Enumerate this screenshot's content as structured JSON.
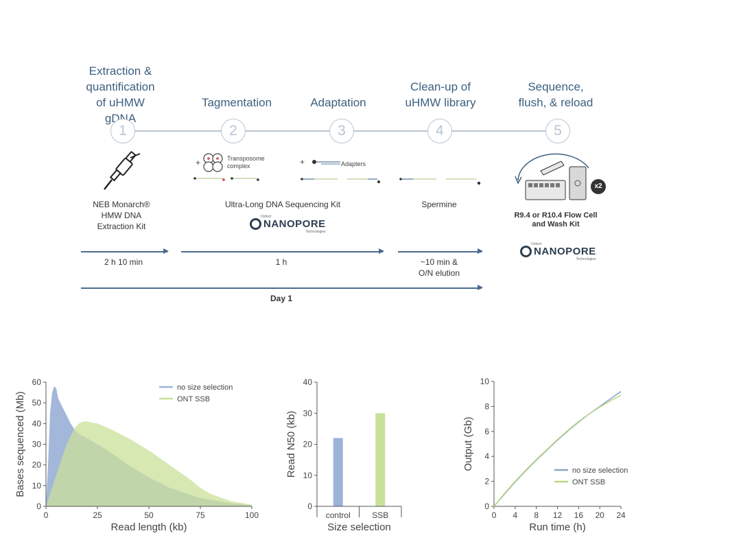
{
  "workflow": {
    "steps": [
      {
        "number": "1",
        "title": "Extraction &\nquantification\nof uHMW gDNA"
      },
      {
        "number": "2",
        "title": "Tagmentation"
      },
      {
        "number": "3",
        "title": "Adaptation"
      },
      {
        "number": "4",
        "title": "Clean-up of\nuHMW library"
      },
      {
        "number": "5",
        "title": "Sequence,\nflush, & reload"
      }
    ],
    "transposome_label": "Transposome\ncomplex",
    "adapters_label": "Adapters",
    "plus_sign": "+",
    "reload_badge": "x2",
    "kit_labels": {
      "neb": "NEB Monarch®\nHMW DNA\nExtraction Kit",
      "ul_kit": "Ultra-Long DNA Sequencing Kit",
      "spermine": "Spermine",
      "flowcell": "R9.4 or R10.4 Flow Cell\nand Wash Kit"
    },
    "logo": {
      "main": "NANOPORE",
      "top": "Oxford",
      "bottom": "Technologies"
    },
    "durations": {
      "step1": "2 h 10 min",
      "step23": "1 h",
      "step4": "~10 min &\nO/N elution",
      "day": "Day 1"
    },
    "colors": {
      "title_blue": "#3c5f80",
      "arrow": "#4a6a8c",
      "circle": "#b7c5d1"
    }
  },
  "chart_data": [
    {
      "type": "area",
      "ylabel": "Bases sequenced (Mb)",
      "xlabel": "Read length (kb)",
      "xlim": [
        0,
        100
      ],
      "ylim": [
        0,
        60
      ],
      "xticks": [
        "0",
        "25",
        "50",
        "75",
        "100"
      ],
      "yticks": [
        "0",
        "10",
        "20",
        "30",
        "40",
        "50",
        "60"
      ],
      "legend_position": "top-right",
      "series": [
        {
          "name": "no size selection",
          "color": "#9db3d8",
          "x": [
            0,
            1,
            2,
            3,
            4,
            5,
            6,
            8,
            10,
            12,
            14,
            16,
            18,
            20,
            25,
            30,
            40,
            50,
            60,
            75,
            90,
            100
          ],
          "y": [
            0,
            20,
            45,
            55,
            58,
            57,
            52,
            48,
            44,
            40,
            37,
            35,
            34,
            33,
            30,
            27,
            20,
            14,
            9,
            4,
            1.5,
            0.5
          ]
        },
        {
          "name": "ONT SSB",
          "color": "#c9e09a",
          "x": [
            0,
            2,
            4,
            6,
            8,
            10,
            12,
            14,
            16,
            18,
            20,
            25,
            30,
            40,
            50,
            60,
            70,
            75,
            80,
            90,
            100
          ],
          "y": [
            0,
            6,
            12,
            18,
            24,
            30,
            34,
            38,
            40,
            41,
            41,
            40,
            38,
            33,
            27,
            20,
            13,
            9,
            6,
            2.5,
            0.8
          ]
        }
      ]
    },
    {
      "type": "bar",
      "ylabel": "Read N50 (kb)",
      "xlabel": "Size selection",
      "categories": [
        "control",
        "SSB"
      ],
      "values": [
        22,
        30
      ],
      "colors": [
        "#9db3d8",
        "#c9e09a"
      ],
      "ylim": [
        0,
        40
      ],
      "yticks": [
        "0",
        "10",
        "20",
        "30",
        "40"
      ]
    },
    {
      "type": "line",
      "ylabel": "Output (Gb)",
      "xlabel": "Run time (h)",
      "xlim": [
        0,
        24
      ],
      "ylim": [
        0,
        10
      ],
      "xticks": [
        "0",
        "4",
        "8",
        "12",
        "16",
        "20",
        "24"
      ],
      "yticks": [
        "0",
        "2",
        "4",
        "6",
        "8",
        "10"
      ],
      "legend_position": "bottom-right",
      "series": [
        {
          "name": "no size selection",
          "color": "#8aa4c8",
          "x": [
            0,
            2,
            4,
            6,
            8,
            10,
            12,
            14,
            16,
            18,
            20,
            22,
            24
          ],
          "y": [
            0,
            1.0,
            1.95,
            2.85,
            3.7,
            4.5,
            5.3,
            6.05,
            6.75,
            7.4,
            8.0,
            8.6,
            9.2
          ]
        },
        {
          "name": "ONT SSB",
          "color": "#bcd88a",
          "x": [
            0,
            2,
            4,
            6,
            8,
            10,
            12,
            14,
            16,
            18,
            20,
            22,
            24
          ],
          "y": [
            0,
            1.05,
            2.0,
            2.9,
            3.75,
            4.55,
            5.35,
            6.1,
            6.8,
            7.4,
            7.95,
            8.45,
            8.9
          ]
        }
      ]
    }
  ]
}
